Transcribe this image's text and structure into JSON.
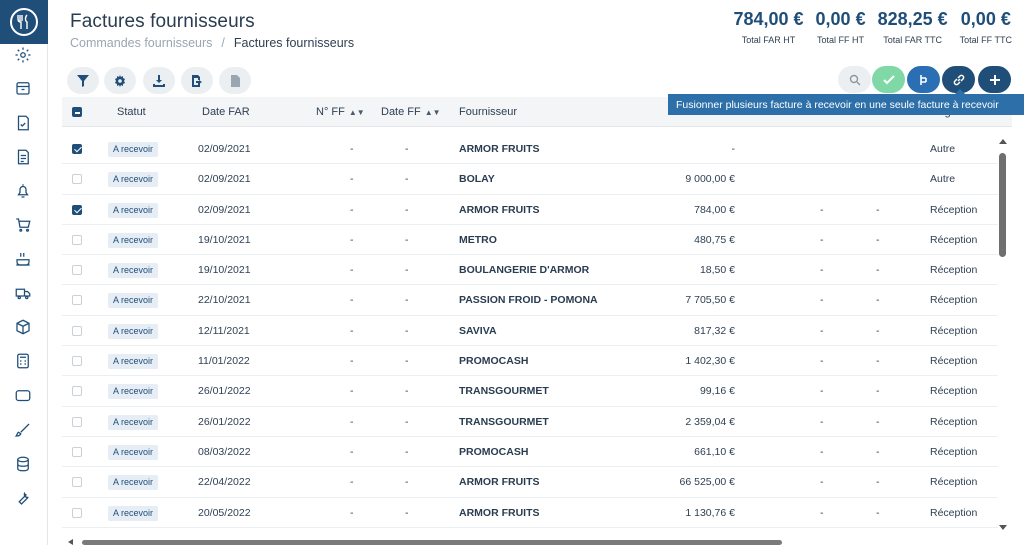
{
  "header": {
    "title": "Factures fournisseurs",
    "breadcrumb": [
      "Commandes fournisseurs",
      "/",
      "Factures fournisseurs"
    ]
  },
  "totals": [
    {
      "value": "784,00 €",
      "label": "Total FAR HT"
    },
    {
      "value": "0,00 €",
      "label": "Total FF HT"
    },
    {
      "value": "828,25 €",
      "label": "Total FAR TTC"
    },
    {
      "value": "0,00 €",
      "label": "Total FF TTC"
    }
  ],
  "toolbar": {
    "left_icons": [
      "filter-icon",
      "gear-icon",
      "download-icon",
      "export-icon",
      "document-icon"
    ],
    "right_icons": [
      "search-icon",
      "check-icon",
      "merge-icon",
      "link-icon",
      "plus-icon"
    ],
    "tooltip": "Fusionner plusieurs facture à recevoir en une seule facture à recevoir",
    "colors": {
      "green": "#7fd8a6",
      "blue": "#2a6eb3",
      "navy": "#1f4e79"
    }
  },
  "table": {
    "columns": {
      "statut": "Statut",
      "date_far": "Date FAR",
      "num_ff": "N° FF",
      "date_ff": "Date FF",
      "fournisseur": "Fournisseur",
      "origine": "Origine"
    },
    "rows": [
      {
        "checked": true,
        "statut": "A recevoir",
        "date_far": "02/09/2021",
        "num_ff": "-",
        "date_ff": "-",
        "fournisseur": "ARMOR FRUITS",
        "montant": "-",
        "c7": "",
        "c8": "",
        "origine": "Autre"
      },
      {
        "checked": false,
        "statut": "A recevoir",
        "date_far": "02/09/2021",
        "num_ff": "-",
        "date_ff": "-",
        "fournisseur": "BOLAY",
        "montant": "9 000,00 €",
        "c7": "",
        "c8": "",
        "origine": "Autre"
      },
      {
        "checked": true,
        "statut": "A recevoir",
        "date_far": "02/09/2021",
        "num_ff": "-",
        "date_ff": "-",
        "fournisseur": "ARMOR FRUITS",
        "montant": "784,00 €",
        "c7": "-",
        "c8": "-",
        "origine": "Réception"
      },
      {
        "checked": false,
        "statut": "A recevoir",
        "date_far": "19/10/2021",
        "num_ff": "-",
        "date_ff": "-",
        "fournisseur": "METRO",
        "montant": "480,75 €",
        "c7": "-",
        "c8": "-",
        "origine": "Réception"
      },
      {
        "checked": false,
        "statut": "A recevoir",
        "date_far": "19/10/2021",
        "num_ff": "-",
        "date_ff": "-",
        "fournisseur": "BOULANGERIE D'ARMOR",
        "montant": "18,50 €",
        "c7": "-",
        "c8": "-",
        "origine": "Réception"
      },
      {
        "checked": false,
        "statut": "A recevoir",
        "date_far": "22/10/2021",
        "num_ff": "-",
        "date_ff": "-",
        "fournisseur": "PASSION FROID - POMONA",
        "montant": "7 705,50 €",
        "c7": "-",
        "c8": "-",
        "origine": "Réception"
      },
      {
        "checked": false,
        "statut": "A recevoir",
        "date_far": "12/11/2021",
        "num_ff": "-",
        "date_ff": "-",
        "fournisseur": "SAVIVA",
        "montant": "817,32 €",
        "c7": "-",
        "c8": "-",
        "origine": "Réception"
      },
      {
        "checked": false,
        "statut": "A recevoir",
        "date_far": "11/01/2022",
        "num_ff": "-",
        "date_ff": "-",
        "fournisseur": "PROMOCASH",
        "montant": "1 402,30 €",
        "c7": "-",
        "c8": "-",
        "origine": "Réception"
      },
      {
        "checked": false,
        "statut": "A recevoir",
        "date_far": "26/01/2022",
        "num_ff": "-",
        "date_ff": "-",
        "fournisseur": "TRANSGOURMET",
        "montant": "99,16 €",
        "c7": "-",
        "c8": "-",
        "origine": "Réception"
      },
      {
        "checked": false,
        "statut": "A recevoir",
        "date_far": "26/01/2022",
        "num_ff": "-",
        "date_ff": "-",
        "fournisseur": "TRANSGOURMET",
        "montant": "2 359,04 €",
        "c7": "-",
        "c8": "-",
        "origine": "Réception"
      },
      {
        "checked": false,
        "statut": "A recevoir",
        "date_far": "08/03/2022",
        "num_ff": "-",
        "date_ff": "-",
        "fournisseur": "PROMOCASH",
        "montant": "661,10 €",
        "c7": "-",
        "c8": "-",
        "origine": "Réception"
      },
      {
        "checked": false,
        "statut": "A recevoir",
        "date_far": "22/04/2022",
        "num_ff": "-",
        "date_ff": "-",
        "fournisseur": "ARMOR FRUITS",
        "montant": "66 525,00 €",
        "c7": "-",
        "c8": "-",
        "origine": "Réception"
      },
      {
        "checked": false,
        "statut": "A recevoir",
        "date_far": "20/05/2022",
        "num_ff": "-",
        "date_ff": "-",
        "fournisseur": "ARMOR FRUITS",
        "montant": "1 130,76 €",
        "c7": "-",
        "c8": "-",
        "origine": "Réception"
      }
    ]
  },
  "sidebar": {
    "icons": [
      "settings-icon",
      "box-icon",
      "invoice-check-icon",
      "invoice-icon",
      "bell-icon",
      "cart-icon",
      "cooking-icon",
      "delivery-truck-icon",
      "cube-stack-icon",
      "calculator-icon",
      "chat-icon",
      "brush-icon",
      "database-icon",
      "wrench-icon"
    ]
  }
}
